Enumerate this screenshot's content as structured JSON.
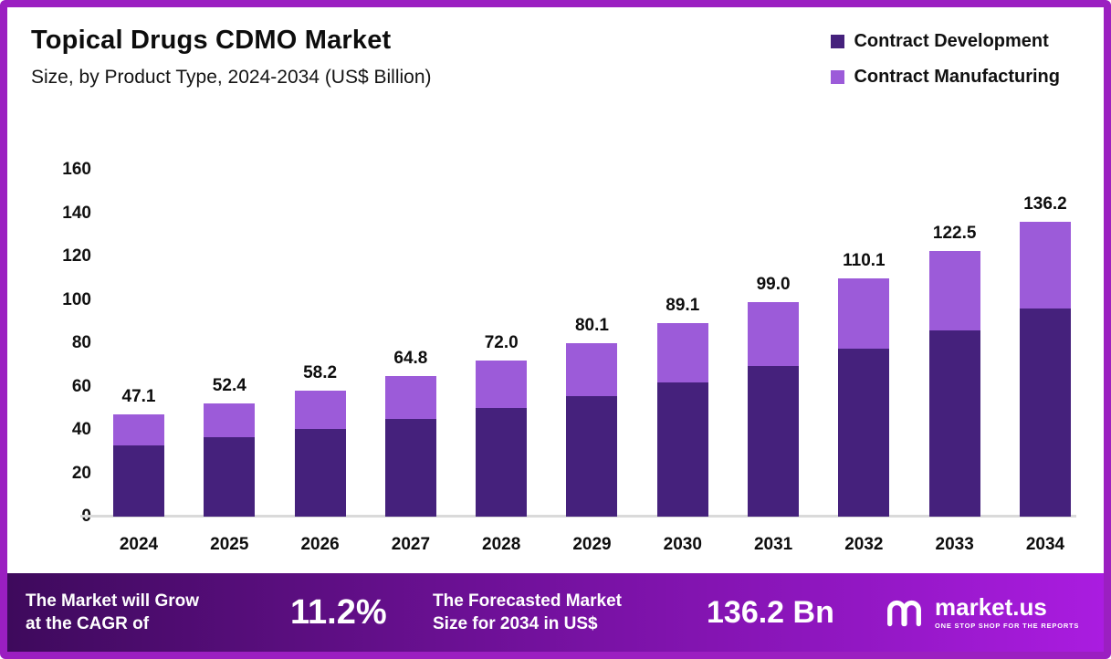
{
  "header": {
    "title": "Topical Drugs CDMO Market",
    "subtitle": "Size, by Product Type, 2024-2034 (US$ Billion)"
  },
  "legend": {
    "items": [
      {
        "label": "Contract Development",
        "color": "#45217C"
      },
      {
        "label": "Contract Manufacturing",
        "color": "#9C5BD9"
      }
    ]
  },
  "chart_data": {
    "type": "bar",
    "stacked": true,
    "title": "Topical Drugs CDMO Market Size, by Product Type, 2024-2034 (US$ Billion)",
    "xlabel": "",
    "ylabel": "",
    "ylim": [
      0,
      160
    ],
    "ytick_step": 20,
    "grid": false,
    "legend_position": "top-right",
    "categories": [
      "2024",
      "2025",
      "2026",
      "2027",
      "2028",
      "2029",
      "2030",
      "2031",
      "2032",
      "2033",
      "2034"
    ],
    "series": [
      {
        "name": "Contract Development",
        "color": "#45217C",
        "values": [
          33.0,
          36.5,
          40.5,
          45.0,
          50.0,
          55.5,
          62.0,
          69.5,
          77.5,
          86.0,
          96.0
        ]
      },
      {
        "name": "Contract Manufacturing",
        "color": "#9C5BD9",
        "values": [
          14.1,
          15.9,
          17.7,
          19.8,
          22.0,
          24.6,
          27.1,
          29.5,
          32.6,
          36.5,
          40.2
        ]
      }
    ],
    "totals": [
      47.1,
      52.4,
      58.2,
      64.8,
      72.0,
      80.1,
      89.1,
      99.0,
      110.1,
      122.5,
      136.2
    ],
    "total_labels": [
      "47.1",
      "52.4",
      "58.2",
      "64.8",
      "72.0",
      "80.1",
      "89.1",
      "99.0",
      "110.1",
      "122.5",
      "136.2"
    ]
  },
  "footer": {
    "cagr_line1": "The Market will Grow",
    "cagr_line2": "at the CAGR of",
    "cagr_value": "11.2%",
    "forecast_line1": "The Forecasted Market",
    "forecast_line2": "Size for 2034 in US$",
    "forecast_value": "136.2 Bn",
    "brand": "market.us",
    "brand_tagline": "ONE STOP SHOP FOR THE REPORTS"
  },
  "colors": {
    "frame_border": "#9B1FC1",
    "contract_development": "#45217C",
    "contract_manufacturing": "#9C5BD9",
    "footer_gradient_start": "#3E0A5C",
    "footer_gradient_end": "#AA1CE0",
    "baseline": "#DADADA"
  }
}
